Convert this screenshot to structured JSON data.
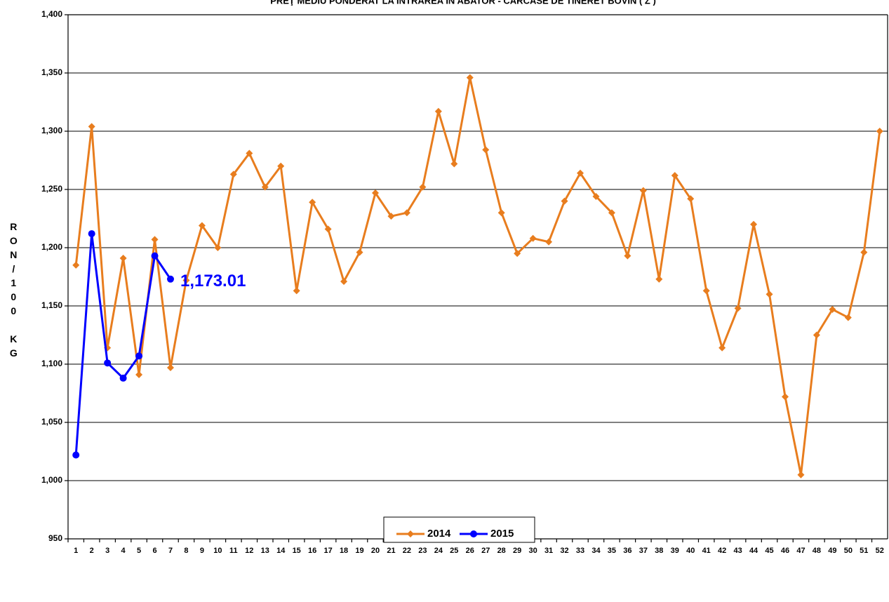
{
  "chart_data": {
    "type": "line",
    "title": "PREŢ MEDIU PONDERAT LA INTRAREA ÎN ABATOR - CARCASE DE TINERET BOVIN ( Z )",
    "y_label": "RON/100 KG",
    "categories": [
      "1",
      "2",
      "3",
      "4",
      "5",
      "6",
      "7",
      "8",
      "9",
      "10",
      "11",
      "12",
      "13",
      "14",
      "15",
      "16",
      "17",
      "18",
      "19",
      "20",
      "21",
      "22",
      "23",
      "24",
      "25",
      "26",
      "27",
      "28",
      "29",
      "30",
      "31",
      "32",
      "33",
      "34",
      "35",
      "36",
      "37",
      "38",
      "39",
      "40",
      "41",
      "42",
      "43",
      "44",
      "45",
      "46",
      "47",
      "48",
      "49",
      "50",
      "51",
      "52"
    ],
    "series": [
      {
        "name": "2014",
        "color": "#e87d1e",
        "marker": "diamond",
        "values": [
          1185,
          1304,
          1114,
          1191,
          1091,
          1207,
          1097,
          1172,
          1219,
          1200,
          1263,
          1281,
          1252,
          1270,
          1163,
          1239,
          1216,
          1171,
          1196,
          1247,
          1227,
          1230,
          1252,
          1317,
          1272,
          1346,
          1284,
          1230,
          1195,
          1208,
          1205,
          1240,
          1264,
          1244,
          1230,
          1193,
          1249,
          1173,
          1262,
          1242,
          1163,
          1114,
          1148,
          1220,
          1160,
          1072,
          1005,
          1125,
          1147,
          1140,
          1196,
          1300
        ]
      },
      {
        "name": "2015",
        "color": "#0000ff",
        "marker": "circle",
        "values": [
          1022,
          1212,
          1101,
          1088,
          1107,
          1193,
          1173.01,
          null,
          null,
          null,
          null,
          null,
          null,
          null,
          null,
          null,
          null,
          null,
          null,
          null,
          null,
          null,
          null,
          null,
          null,
          null,
          null,
          null,
          null,
          null,
          null,
          null,
          null,
          null,
          null,
          null,
          null,
          null,
          null,
          null,
          null,
          null,
          null,
          null,
          null,
          null,
          null,
          null,
          null,
          null,
          null,
          null
        ],
        "value_labels": [
          null,
          null,
          null,
          null,
          null,
          null,
          "1,173.01",
          null,
          null,
          null,
          null,
          null,
          null,
          null,
          null,
          null,
          null,
          null,
          null,
          null,
          null,
          null,
          null,
          null,
          null,
          null,
          null,
          null,
          null,
          null,
          null,
          null,
          null,
          null,
          null,
          null,
          null,
          null,
          null,
          null,
          null,
          null,
          null,
          null,
          null,
          null,
          null,
          null,
          null,
          null,
          null,
          null
        ]
      }
    ],
    "ylim": [
      950,
      1400
    ],
    "yticks": [
      {
        "value": 950,
        "label": "950"
      },
      {
        "value": 1000,
        "label": "1,000"
      },
      {
        "value": 1050,
        "label": "1,050"
      },
      {
        "value": 1100,
        "label": "1,100"
      },
      {
        "value": 1150,
        "label": "1,150"
      },
      {
        "value": 1200,
        "label": "1,200"
      },
      {
        "value": 1250,
        "label": "1,250"
      },
      {
        "value": 1300,
        "label": "1,300"
      },
      {
        "value": 1350,
        "label": "1,350"
      },
      {
        "value": 1400,
        "label": "1,400"
      }
    ],
    "grid": true,
    "legend": "bottom"
  }
}
